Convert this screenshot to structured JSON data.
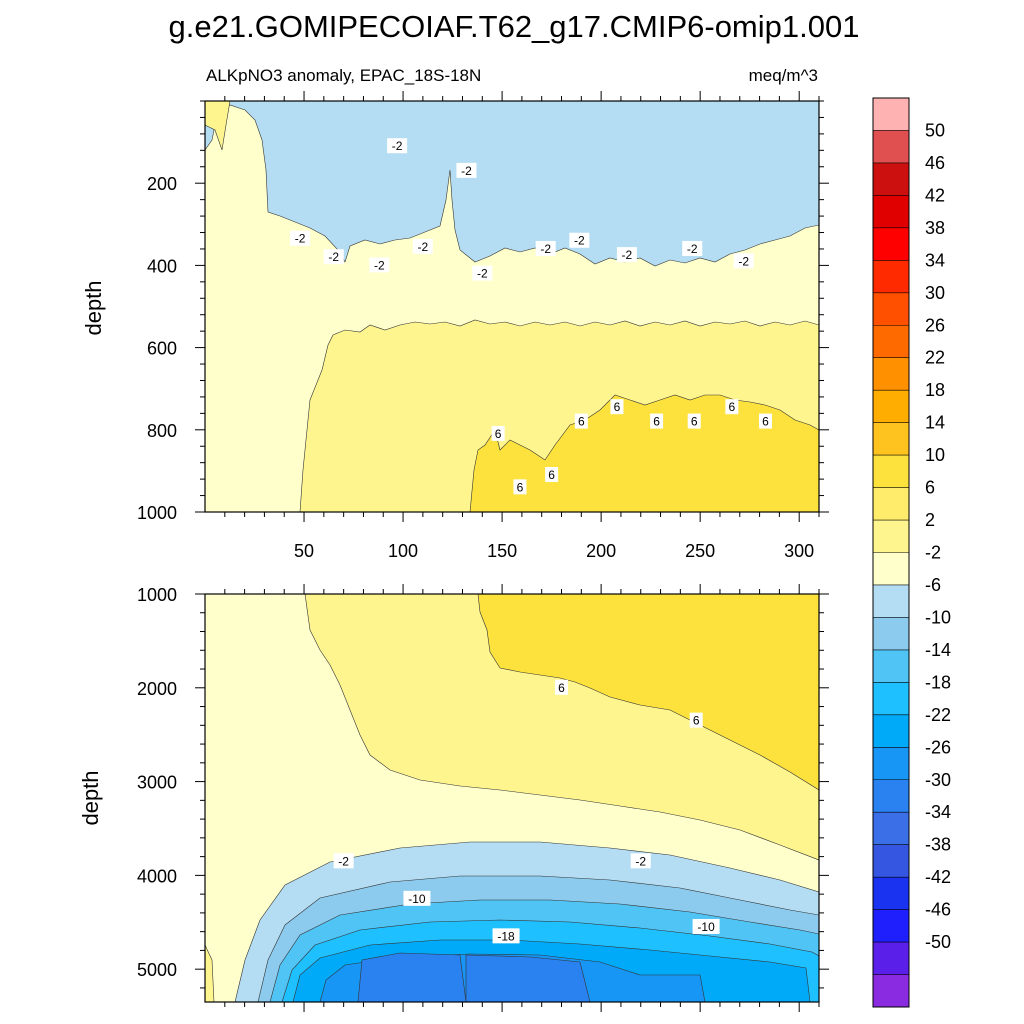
{
  "title": "g.e21.GOMIPECOIAF.T62_g17.CMIP6-omip1.001",
  "subtitle_left": "ALKpNO3 anomaly, EPAC_18S-18N",
  "subtitle_right": "meq/m^3",
  "colors": {
    "levels": [
      "#8a2be2",
      "#5a1fe8",
      "#1f1ffe",
      "#1a33f0",
      "#3556e0",
      "#3a6fe8",
      "#2a82f0",
      "#1896f5",
      "#00aaf8",
      "#1ec0ff",
      "#50c4f5",
      "#8ccbee",
      "#b4ddf3",
      "#ffffcc",
      "#fff58e",
      "#ffec6a",
      "#fde23d",
      "#ffc31f",
      "#ffad00",
      "#ff9000",
      "#ff6a00",
      "#ff5000",
      "#ff2a00",
      "#ff0000",
      "#e00000",
      "#cc1010",
      "#e05050",
      "#ffb2b2"
    ]
  },
  "colorbar_labels": [
    "50",
    "46",
    "42",
    "38",
    "34",
    "30",
    "26",
    "22",
    "18",
    "14",
    "10",
    "6",
    "2",
    "-2",
    "-6",
    "-10",
    "-14",
    "-18",
    "-22",
    "-26",
    "-30",
    "-34",
    "-38",
    "-42",
    "-46",
    "-50"
  ],
  "chart_data": [
    {
      "type": "heatmap",
      "name": "upper-panel",
      "ylabel": "depth",
      "xlabel": "",
      "xlim": [
        0,
        310
      ],
      "ylim": [
        1000,
        0
      ],
      "x_ticks": [
        "50",
        "100",
        "150",
        "200",
        "250",
        "300"
      ],
      "x_tick_values": [
        50,
        100,
        150,
        200,
        250,
        300
      ],
      "y_ticks": [
        "200",
        "400",
        "600",
        "800",
        "1000"
      ],
      "y_tick_values": [
        200,
        400,
        600,
        800,
        1000
      ],
      "contour_labels": [
        {
          "text": "-2",
          "x": 97,
          "y": 110
        },
        {
          "text": "-2",
          "x": 132,
          "y": 170
        },
        {
          "text": "-2",
          "x": 48,
          "y": 335
        },
        {
          "text": "-2",
          "x": 65,
          "y": 380
        },
        {
          "text": "-2",
          "x": 88,
          "y": 400
        },
        {
          "text": "-2",
          "x": 110,
          "y": 355
        },
        {
          "text": "-2",
          "x": 140,
          "y": 420
        },
        {
          "text": "-2",
          "x": 172,
          "y": 360
        },
        {
          "text": "-2",
          "x": 189,
          "y": 340
        },
        {
          "text": "-2",
          "x": 213,
          "y": 375
        },
        {
          "text": "-2",
          "x": 246,
          "y": 360
        },
        {
          "text": "-2",
          "x": 272,
          "y": 390
        },
        {
          "text": "6",
          "x": 148,
          "y": 810
        },
        {
          "text": "6",
          "x": 159,
          "y": 940
        },
        {
          "text": "6",
          "x": 175,
          "y": 910
        },
        {
          "text": "6",
          "x": 190,
          "y": 780
        },
        {
          "text": "6",
          "x": 208,
          "y": 745
        },
        {
          "text": "6",
          "x": 228,
          "y": 780
        },
        {
          "text": "6",
          "x": 247,
          "y": 780
        },
        {
          "text": "6",
          "x": 266,
          "y": 745
        },
        {
          "text": "6",
          "x": 283,
          "y": 780
        }
      ]
    },
    {
      "type": "heatmap",
      "name": "lower-panel",
      "ylabel": "depth",
      "xlabel": "",
      "xlim": [
        0,
        310
      ],
      "ylim": [
        5350,
        1000
      ],
      "y_ticks": [
        "1000",
        "2000",
        "3000",
        "4000",
        "5000"
      ],
      "y_tick_values": [
        1000,
        2000,
        3000,
        4000,
        5000
      ],
      "contour_labels": [
        {
          "text": "6",
          "x": 180,
          "y": 2000
        },
        {
          "text": "6",
          "x": 248,
          "y": 2350
        },
        {
          "text": "-2",
          "x": 70,
          "y": 3850
        },
        {
          "text": "-2",
          "x": 220,
          "y": 3850
        },
        {
          "text": "-10",
          "x": 107,
          "y": 4250
        },
        {
          "text": "-10",
          "x": 253,
          "y": 4550
        },
        {
          "text": "-18",
          "x": 152,
          "y": 4650
        }
      ]
    }
  ]
}
